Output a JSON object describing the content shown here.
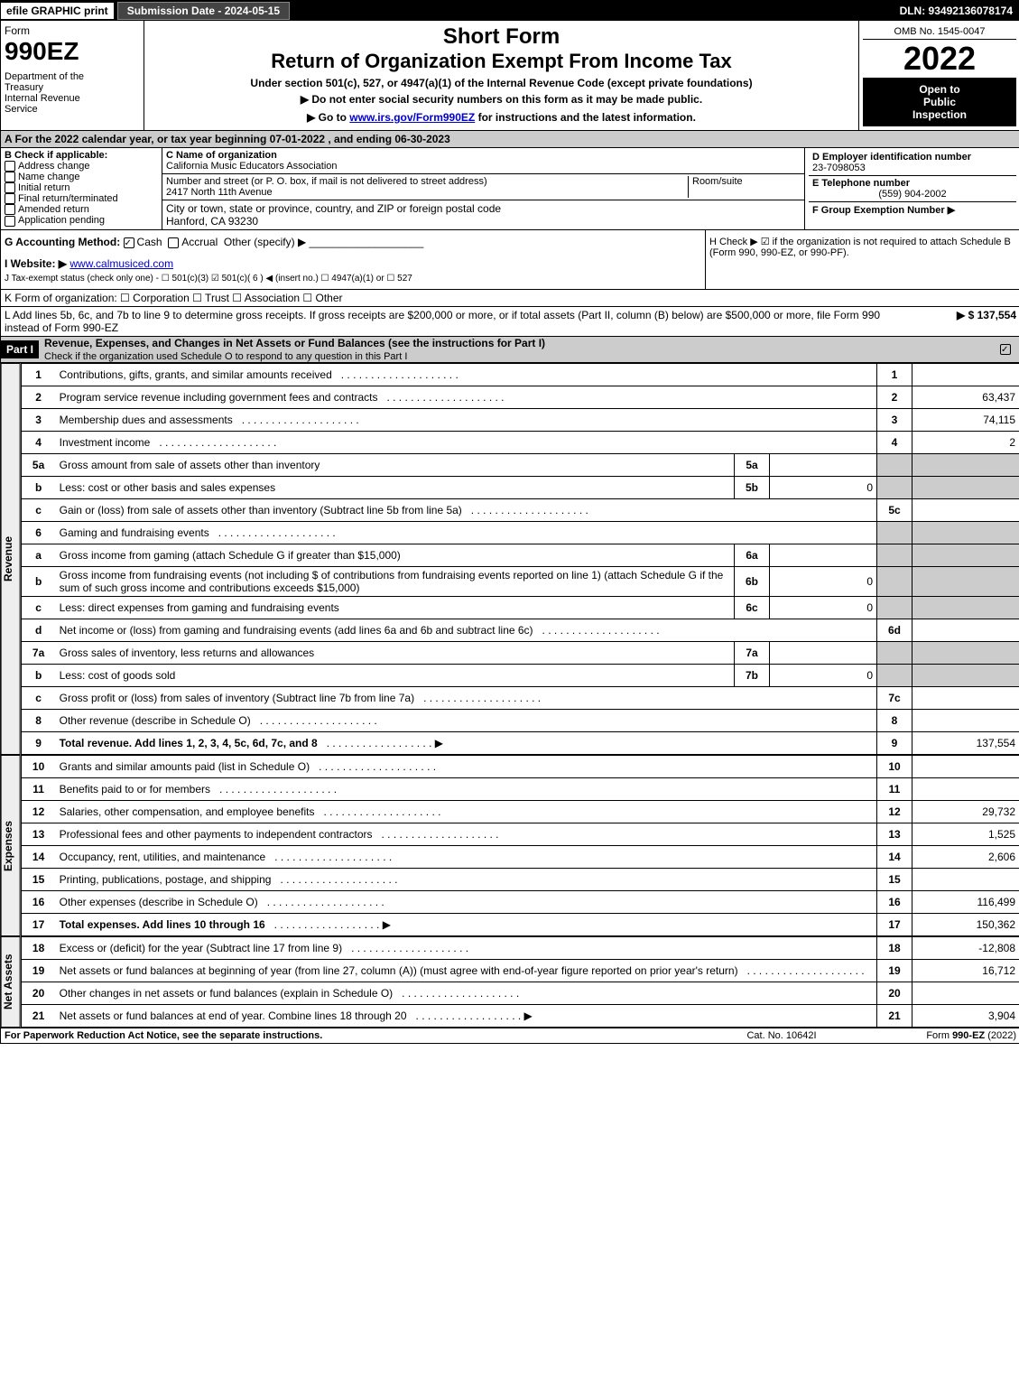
{
  "topbar": {
    "efile": "efile GRAPHIC print",
    "subdate": "Submission Date - 2024-05-15",
    "dln": "DLN: 93492136078174"
  },
  "header": {
    "form_label": "Form",
    "form_no": "990EZ",
    "dept": "Department of the Treasury\nInternal Revenue Service",
    "omb": "OMB No. 1545-0047",
    "year": "2022",
    "open": "Open to Public Inspection",
    "short_form": "Short Form",
    "return_title": "Return of Organization Exempt From Income Tax",
    "under": "Under section 501(c), 527, or 4947(a)(1) of the Internal Revenue Code (except private foundations)",
    "no_ssn": "▶ Do not enter social security numbers on this form as it may be made public.",
    "goto": "▶ Go to www.irs.gov/Form990EZ for instructions and the latest information."
  },
  "row_a": "A  For the 2022 calendar year, or tax year beginning 07-01-2022 , and ending 06-30-2023",
  "box_b": {
    "label": "B  Check if applicable:",
    "items": [
      "Address change",
      "Name change",
      "Initial return",
      "Final return/terminated",
      "Amended return",
      "Application pending"
    ]
  },
  "box_c": {
    "name_label": "C Name of organization",
    "name": "California Music Educators Association",
    "street_label": "Number and street (or P. O. box, if mail is not delivered to street address)",
    "street": "2417 North 11th Avenue",
    "room_label": "Room/suite",
    "city_label": "City or town, state or province, country, and ZIP or foreign postal code",
    "city": "Hanford, CA  93230"
  },
  "box_d": {
    "label": "D Employer identification number",
    "value": "23-7098053"
  },
  "box_e": {
    "label": "E Telephone number",
    "value": "(559) 904-2002"
  },
  "box_f": {
    "label": "F Group Exemption Number  ▶"
  },
  "row_g": {
    "label": "G Accounting Method:",
    "cash": "Cash",
    "accrual": "Accrual",
    "other": "Other (specify) ▶"
  },
  "row_h": "H  Check ▶ ☑ if the organization is not required to attach Schedule B (Form 990, 990-EZ, or 990-PF).",
  "row_i": {
    "label": "I Website: ▶",
    "value": "www.calmusiced.com"
  },
  "row_j": "J Tax-exempt status (check only one) - ☐ 501(c)(3) ☑ 501(c)( 6 ) ◀ (insert no.) ☐ 4947(a)(1) or ☐ 527",
  "row_k": "K Form of organization:   ☐ Corporation   ☐ Trust   ☐ Association   ☐ Other",
  "row_l": "L Add lines 5b, 6c, and 7b to line 9 to determine gross receipts. If gross receipts are $200,000 or more, or if total assets (Part II, column (B) below) are $500,000 or more, file Form 990 instead of Form 990-EZ",
  "row_l_amount": "▶ $ 137,554",
  "part1": {
    "header": "Part I",
    "title": "Revenue, Expenses, and Changes in Net Assets or Fund Balances (see the instructions for Part I)",
    "check": "Check if the organization used Schedule O to respond to any question in this Part I"
  },
  "sections": {
    "revenue": "Revenue",
    "expenses": "Expenses",
    "netassets": "Net Assets"
  },
  "lines": [
    {
      "no": "1",
      "desc": "Contributions, gifts, grants, and similar amounts received",
      "num": "1",
      "amt": ""
    },
    {
      "no": "2",
      "desc": "Program service revenue including government fees and contracts",
      "num": "2",
      "amt": "63,437"
    },
    {
      "no": "3",
      "desc": "Membership dues and assessments",
      "num": "3",
      "amt": "74,115"
    },
    {
      "no": "4",
      "desc": "Investment income",
      "num": "4",
      "amt": "2"
    },
    {
      "no": "5a",
      "desc": "Gross amount from sale of assets other than inventory",
      "sub": "5a",
      "subval": "",
      "num": "",
      "amt": "",
      "shaded_right": true
    },
    {
      "no": "b",
      "desc": "Less: cost or other basis and sales expenses",
      "sub": "5b",
      "subval": "0",
      "num": "",
      "amt": "",
      "shaded_right": true
    },
    {
      "no": "c",
      "desc": "Gain or (loss) from sale of assets other than inventory (Subtract line 5b from line 5a)",
      "num": "5c",
      "amt": ""
    },
    {
      "no": "6",
      "desc": "Gaming and fundraising events",
      "num": "",
      "amt": "",
      "shaded_right": true
    },
    {
      "no": "a",
      "desc": "Gross income from gaming (attach Schedule G if greater than $15,000)",
      "sub": "6a",
      "subval": "",
      "num": "",
      "amt": "",
      "shaded_right": true
    },
    {
      "no": "b",
      "desc": "Gross income from fundraising events (not including $                          of contributions from fundraising events reported on line 1) (attach Schedule G if the sum of such gross income and contributions exceeds $15,000)",
      "sub": "6b",
      "subval": "0",
      "num": "",
      "amt": "",
      "shaded_right": true
    },
    {
      "no": "c",
      "desc": "Less: direct expenses from gaming and fundraising events",
      "sub": "6c",
      "subval": "0",
      "num": "",
      "amt": "",
      "shaded_right": true
    },
    {
      "no": "d",
      "desc": "Net income or (loss) from gaming and fundraising events (add lines 6a and 6b and subtract line 6c)",
      "num": "6d",
      "amt": ""
    },
    {
      "no": "7a",
      "desc": "Gross sales of inventory, less returns and allowances",
      "sub": "7a",
      "subval": "",
      "num": "",
      "amt": "",
      "shaded_right": true
    },
    {
      "no": "b",
      "desc": "Less: cost of goods sold",
      "sub": "7b",
      "subval": "0",
      "num": "",
      "amt": "",
      "shaded_right": true
    },
    {
      "no": "c",
      "desc": "Gross profit or (loss) from sales of inventory (Subtract line 7b from line 7a)",
      "num": "7c",
      "amt": ""
    },
    {
      "no": "8",
      "desc": "Other revenue (describe in Schedule O)",
      "num": "8",
      "amt": ""
    },
    {
      "no": "9",
      "desc": "Total revenue. Add lines 1, 2, 3, 4, 5c, 6d, 7c, and 8",
      "num": "9",
      "amt": "137,554",
      "arrow": true,
      "bold": true
    }
  ],
  "exp_lines": [
    {
      "no": "10",
      "desc": "Grants and similar amounts paid (list in Schedule O)",
      "num": "10",
      "amt": ""
    },
    {
      "no": "11",
      "desc": "Benefits paid to or for members",
      "num": "11",
      "amt": ""
    },
    {
      "no": "12",
      "desc": "Salaries, other compensation, and employee benefits",
      "num": "12",
      "amt": "29,732"
    },
    {
      "no": "13",
      "desc": "Professional fees and other payments to independent contractors",
      "num": "13",
      "amt": "1,525"
    },
    {
      "no": "14",
      "desc": "Occupancy, rent, utilities, and maintenance",
      "num": "14",
      "amt": "2,606"
    },
    {
      "no": "15",
      "desc": "Printing, publications, postage, and shipping",
      "num": "15",
      "amt": ""
    },
    {
      "no": "16",
      "desc": "Other expenses (describe in Schedule O)",
      "num": "16",
      "amt": "116,499"
    },
    {
      "no": "17",
      "desc": "Total expenses. Add lines 10 through 16",
      "num": "17",
      "amt": "150,362",
      "arrow": true,
      "bold": true
    }
  ],
  "net_lines": [
    {
      "no": "18",
      "desc": "Excess or (deficit) for the year (Subtract line 17 from line 9)",
      "num": "18",
      "amt": "-12,808"
    },
    {
      "no": "19",
      "desc": "Net assets or fund balances at beginning of year (from line 27, column (A)) (must agree with end-of-year figure reported on prior year's return)",
      "num": "19",
      "amt": "16,712"
    },
    {
      "no": "20",
      "desc": "Other changes in net assets or fund balances (explain in Schedule O)",
      "num": "20",
      "amt": ""
    },
    {
      "no": "21",
      "desc": "Net assets or fund balances at end of year. Combine lines 18 through 20",
      "num": "21",
      "amt": "3,904",
      "arrow": true
    }
  ],
  "footer": {
    "left": "For Paperwork Reduction Act Notice, see the separate instructions.",
    "mid": "Cat. No. 10642I",
    "right": "Form 990-EZ (2022)"
  }
}
